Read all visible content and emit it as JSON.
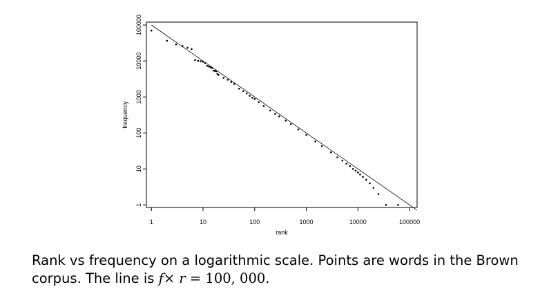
{
  "chart_data": {
    "type": "scatter",
    "xlabel": "rank",
    "ylabel": "frequency",
    "x_scale": "log",
    "y_scale": "log",
    "xlim": [
      0.8,
      140000
    ],
    "ylim": [
      0.85,
      120000
    ],
    "x_ticks": [
      {
        "value": 1,
        "label": "1"
      },
      {
        "value": 10,
        "label": "10"
      },
      {
        "value": 100,
        "label": "100"
      },
      {
        "value": 1000,
        "label": "1000"
      },
      {
        "value": 10000,
        "label": "10000"
      },
      {
        "value": 100000,
        "label": "100000"
      }
    ],
    "y_ticks": [
      {
        "value": 1,
        "label": "1"
      },
      {
        "value": 10,
        "label": "10"
      },
      {
        "value": 100,
        "label": "100"
      },
      {
        "value": 1000,
        "label": "1000"
      },
      {
        "value": 10000,
        "label": "10000"
      },
      {
        "value": 100000,
        "label": "100000"
      }
    ],
    "grid": false,
    "reference_line": {
      "formula": "f × r = 100,000",
      "constant": 100000
    },
    "series": [
      {
        "points": [
          [
            1,
            69971
          ],
          [
            2,
            36411
          ],
          [
            3,
            28852
          ],
          [
            4,
            26149
          ],
          [
            5,
            23237
          ],
          [
            6,
            21341
          ],
          [
            7,
            10595
          ],
          [
            8,
            10099
          ],
          [
            9,
            9816
          ],
          [
            10,
            9543
          ],
          [
            11,
            8768
          ],
          [
            12,
            7289
          ],
          [
            13,
            6996
          ],
          [
            14,
            6742
          ],
          [
            15,
            6377
          ],
          [
            16,
            5378
          ],
          [
            17,
            5307
          ],
          [
            18,
            5173
          ],
          [
            19,
            4381
          ],
          [
            20,
            4106
          ],
          [
            25,
            3400
          ],
          [
            30,
            3000
          ],
          [
            35,
            2600
          ],
          [
            40,
            2300
          ],
          [
            50,
            1700
          ],
          [
            60,
            1450
          ],
          [
            70,
            1250
          ],
          [
            80,
            1080
          ],
          [
            90,
            950
          ],
          [
            100,
            880
          ],
          [
            120,
            720
          ],
          [
            150,
            560
          ],
          [
            200,
            420
          ],
          [
            250,
            340
          ],
          [
            300,
            290
          ],
          [
            400,
            220
          ],
          [
            500,
            175
          ],
          [
            700,
            125
          ],
          [
            1000,
            88
          ],
          [
            1500,
            58
          ],
          [
            2000,
            43
          ],
          [
            3000,
            29
          ],
          [
            4000,
            21
          ],
          [
            5000,
            17
          ],
          [
            6000,
            14
          ],
          [
            7000,
            12
          ],
          [
            8000,
            10
          ],
          [
            9000,
            9
          ],
          [
            10000,
            8
          ],
          [
            11000,
            7
          ],
          [
            12500,
            6
          ],
          [
            14500,
            5
          ],
          [
            17000,
            4
          ],
          [
            20000,
            3
          ],
          [
            25000,
            2
          ],
          [
            35000,
            1
          ],
          [
            60000,
            1
          ]
        ]
      }
    ]
  },
  "caption": {
    "line1": "Rank vs frequency on a logarithmic scale. Points are words in the Brown",
    "line2_prefix": "corpus. The line is ",
    "f_symbol": "f",
    "times_symbol": "×",
    "r_symbol": "r",
    "equals_value": " = 100, 000."
  }
}
